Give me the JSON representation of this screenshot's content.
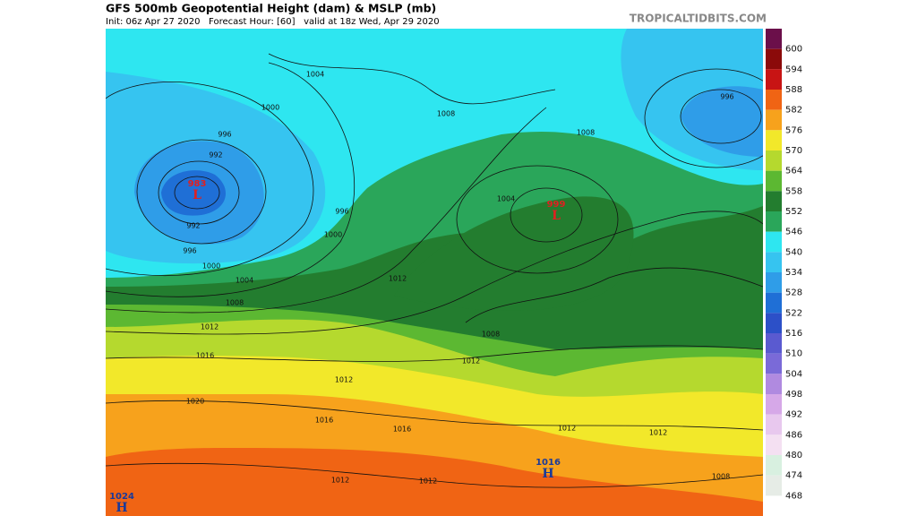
{
  "header": {
    "title": "GFS 500mb Geopotential Height (dam) & MSLP (mb)",
    "subtitle": "Init: 06z Apr 27 2020   Forecast Hour: [60]   valid at 18z Wed, Apr 29 2020",
    "source": "TROPICALTIDBITS.COM"
  },
  "legend": {
    "values": [
      600,
      594,
      588,
      582,
      576,
      570,
      564,
      558,
      552,
      546,
      540,
      534,
      528,
      522,
      516,
      510,
      504,
      498,
      492,
      486,
      480,
      474,
      468
    ],
    "colors": [
      "#6b0f4a",
      "#8b0a0a",
      "#c81414",
      "#f06414",
      "#f7a21c",
      "#f2e82a",
      "#b5d92e",
      "#5cb832",
      "#237d2f",
      "#2aa65a",
      "#2ee6f0",
      "#36c4f0",
      "#2f9de8",
      "#1f6fd6",
      "#2c50c8",
      "#5a5ad0",
      "#7a6ad8",
      "#b08ae0",
      "#d6a8e8",
      "#e8c8ee",
      "#f4e0f2",
      "#d8f0e0",
      "#e6ece6"
    ]
  },
  "pressure_centers": [
    {
      "value": "983",
      "type": "L"
    },
    {
      "value": "999",
      "type": "L"
    },
    {
      "value": "1016",
      "type": "H"
    },
    {
      "value": "1024",
      "type": "H"
    }
  ],
  "isobar_labels": [
    "1004",
    "1000",
    "996",
    "992",
    "992",
    "996",
    "1000",
    "1004",
    "1008",
    "1012",
    "1016",
    "1020",
    "1012",
    "1016",
    "1016",
    "1012",
    "1012",
    "1012",
    "1008",
    "1004",
    "1008",
    "996",
    "1008",
    "1012",
    "996",
    "1000",
    "1012",
    "1008",
    "1012"
  ]
}
